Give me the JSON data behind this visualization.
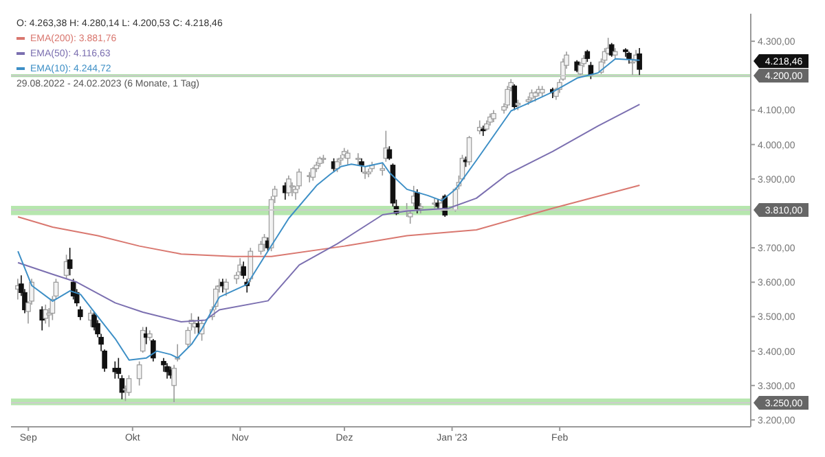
{
  "chart_data": {
    "type": "candlestick",
    "title": "O: 4.263,38  H: 4.280,14  L: 4.200,53  C: 4.218,46",
    "subtitle": "29.08.2022 - 24.02.2023  (6 Monate, 1 Tag)",
    "x": [
      "2022-08-29",
      "2022-08-30",
      "2022-08-31",
      "2022-09-01",
      "2022-09-02",
      "2022-09-05",
      "2022-09-06",
      "2022-09-07",
      "2022-09-08",
      "2022-09-09",
      "2022-09-12",
      "2022-09-13",
      "2022-09-14",
      "2022-09-15",
      "2022-09-16",
      "2022-09-19",
      "2022-09-20",
      "2022-09-21",
      "2022-09-22",
      "2022-09-23",
      "2022-09-26",
      "2022-09-27",
      "2022-09-28",
      "2022-09-29",
      "2022-09-30",
      "2022-10-03",
      "2022-10-04",
      "2022-10-05",
      "2022-10-06",
      "2022-10-07",
      "2022-10-10",
      "2022-10-11",
      "2022-10-12",
      "2022-10-13",
      "2022-10-14",
      "2022-10-17",
      "2022-10-18",
      "2022-10-19",
      "2022-10-20",
      "2022-10-21",
      "2022-10-24",
      "2022-10-25",
      "2022-10-26",
      "2022-10-27",
      "2022-10-28",
      "2022-10-31",
      "2022-11-01",
      "2022-11-02",
      "2022-11-03",
      "2022-11-04",
      "2022-11-07",
      "2022-11-08",
      "2022-11-09",
      "2022-11-10",
      "2022-11-11",
      "2022-11-14",
      "2022-11-15",
      "2022-11-16",
      "2022-11-17",
      "2022-11-18",
      "2022-11-21",
      "2022-11-22",
      "2022-11-23",
      "2022-11-24",
      "2022-11-25",
      "2022-11-28",
      "2022-11-29",
      "2022-11-30",
      "2022-12-01",
      "2022-12-02",
      "2022-12-05",
      "2022-12-06",
      "2022-12-07",
      "2022-12-08",
      "2022-12-09",
      "2022-12-12",
      "2022-12-13",
      "2022-12-14",
      "2022-12-15",
      "2022-12-16",
      "2022-12-19",
      "2022-12-20",
      "2022-12-21",
      "2022-12-22",
      "2022-12-23",
      "2022-12-27",
      "2022-12-28",
      "2022-12-29",
      "2022-12-30",
      "2023-01-02",
      "2023-01-03",
      "2023-01-04",
      "2023-01-05",
      "2023-01-06",
      "2023-01-09",
      "2023-01-10",
      "2023-01-11",
      "2023-01-12",
      "2023-01-13",
      "2023-01-16",
      "2023-01-17",
      "2023-01-18",
      "2023-01-19",
      "2023-01-20",
      "2023-01-23",
      "2023-01-24",
      "2023-01-25",
      "2023-01-26",
      "2023-01-27",
      "2023-01-30",
      "2023-01-31",
      "2023-02-01",
      "2023-02-02",
      "2023-02-03",
      "2023-02-06",
      "2023-02-07",
      "2023-02-08",
      "2023-02-09",
      "2023-02-10",
      "2023-02-13",
      "2023-02-14",
      "2023-02-15",
      "2023-02-16",
      "2023-02-17",
      "2023-02-20",
      "2023-02-21",
      "2023-02-22",
      "2023-02-23",
      "2023-02-24"
    ],
    "ohlc": [
      [
        3580,
        3610,
        3550,
        3590
      ],
      [
        3595,
        3620,
        3560,
        3570
      ],
      [
        3570,
        3580,
        3510,
        3520
      ],
      [
        3515,
        3545,
        3480,
        3540
      ],
      [
        3545,
        3610,
        3535,
        3600
      ],
      [
        3520,
        3530,
        3460,
        3490
      ],
      [
        3495,
        3535,
        3480,
        3520
      ],
      [
        3505,
        3525,
        3470,
        3510
      ],
      [
        3510,
        3560,
        3490,
        3550
      ],
      [
        3560,
        3610,
        3550,
        3600
      ],
      [
        3620,
        3680,
        3610,
        3660
      ],
      [
        3665,
        3700,
        3620,
        3640
      ],
      [
        3600,
        3610,
        3550,
        3560
      ],
      [
        3570,
        3580,
        3530,
        3540
      ],
      [
        3520,
        3530,
        3490,
        3500
      ],
      [
        3490,
        3520,
        3470,
        3510
      ],
      [
        3505,
        3515,
        3460,
        3470
      ],
      [
        3480,
        3490,
        3440,
        3450
      ],
      [
        3440,
        3450,
        3400,
        3420
      ],
      [
        3400,
        3405,
        3340,
        3350
      ],
      [
        3350,
        3370,
        3320,
        3340
      ],
      [
        3350,
        3380,
        3320,
        3335
      ],
      [
        3320,
        3330,
        3260,
        3280
      ],
      [
        3290,
        3300,
        3255,
        3290
      ],
      [
        3280,
        3330,
        3270,
        3320
      ],
      [
        3320,
        3370,
        3300,
        3360
      ],
      [
        3400,
        3470,
        3395,
        3460
      ],
      [
        3450,
        3470,
        3420,
        3440
      ],
      [
        3440,
        3460,
        3430,
        3450
      ],
      [
        3430,
        3435,
        3370,
        3380
      ],
      [
        3370,
        3380,
        3340,
        3360
      ],
      [
        3355,
        3365,
        3320,
        3340
      ],
      [
        3345,
        3355,
        3320,
        3330
      ],
      [
        3300,
        3360,
        3250,
        3350
      ],
      [
        3380,
        3420,
        3370,
        3380
      ],
      [
        3420,
        3470,
        3410,
        3460
      ],
      [
        3480,
        3510,
        3460,
        3490
      ],
      [
        3470,
        3490,
        3450,
        3480
      ],
      [
        3480,
        3500,
        3450,
        3470
      ],
      [
        3450,
        3490,
        3430,
        3480
      ],
      [
        3500,
        3530,
        3490,
        3520
      ],
      [
        3530,
        3590,
        3520,
        3580
      ],
      [
        3590,
        3610,
        3570,
        3590
      ],
      [
        3600,
        3610,
        3570,
        3590
      ],
      [
        3580,
        3610,
        3560,
        3600
      ],
      [
        3610,
        3630,
        3595,
        3620
      ],
      [
        3630,
        3670,
        3620,
        3650
      ],
      [
        3645,
        3660,
        3610,
        3620
      ],
      [
        3600,
        3610,
        3570,
        3590
      ],
      [
        3610,
        3700,
        3600,
        3690
      ],
      [
        3690,
        3720,
        3680,
        3710
      ],
      [
        3710,
        3740,
        3690,
        3730
      ],
      [
        3720,
        3730,
        3690,
        3700
      ],
      [
        3700,
        3850,
        3690,
        3840
      ],
      [
        3850,
        3880,
        3830,
        3870
      ],
      [
        3880,
        3890,
        3840,
        3860
      ],
      [
        3860,
        3910,
        3850,
        3900
      ],
      [
        3880,
        3890,
        3850,
        3880
      ],
      [
        3860,
        3880,
        3840,
        3870
      ],
      [
        3880,
        3930,
        3870,
        3920
      ],
      [
        3910,
        3920,
        3890,
        3910
      ],
      [
        3905,
        3935,
        3895,
        3930
      ],
      [
        3930,
        3950,
        3920,
        3940
      ],
      [
        3945,
        3965,
        3935,
        3960
      ],
      [
        3960,
        3970,
        3945,
        3960
      ],
      [
        3950,
        3960,
        3920,
        3930
      ],
      [
        3930,
        3960,
        3920,
        3950
      ],
      [
        3955,
        3970,
        3940,
        3960
      ],
      [
        3970,
        3990,
        3960,
        3980
      ],
      [
        3960,
        3985,
        3940,
        3975
      ],
      [
        3960,
        3975,
        3940,
        3960
      ],
      [
        3950,
        3960,
        3920,
        3940
      ],
      [
        3920,
        3935,
        3900,
        3920
      ],
      [
        3915,
        3930,
        3905,
        3920
      ],
      [
        3930,
        3950,
        3920,
        3940
      ],
      [
        3925,
        3945,
        3910,
        3930
      ],
      [
        3960,
        4040,
        3950,
        3990
      ],
      [
        3985,
        3995,
        3955,
        3960
      ],
      [
        3940,
        3945,
        3820,
        3830
      ],
      [
        3820,
        3840,
        3795,
        3800
      ],
      [
        3810,
        3830,
        3790,
        3810
      ],
      [
        3790,
        3810,
        3770,
        3800
      ],
      [
        3830,
        3880,
        3820,
        3850
      ],
      [
        3860,
        3870,
        3800,
        3810
      ],
      [
        3815,
        3830,
        3800,
        3820
      ],
      [
        3830,
        3845,
        3815,
        3830
      ],
      [
        3830,
        3840,
        3810,
        3820
      ],
      [
        3810,
        3845,
        3805,
        3830
      ],
      [
        3850,
        3855,
        3790,
        3795
      ],
      [
        3810,
        3875,
        3805,
        3870
      ],
      [
        3880,
        3910,
        3870,
        3890
      ],
      [
        3900,
        3970,
        3895,
        3960
      ],
      [
        3955,
        3965,
        3935,
        3950
      ],
      [
        3950,
        4025,
        3940,
        4020
      ],
      [
        4040,
        4070,
        4030,
        4050
      ],
      [
        4045,
        4055,
        4025,
        4040
      ],
      [
        4045,
        4070,
        4040,
        4060
      ],
      [
        4065,
        4090,
        4055,
        4080
      ],
      [
        4075,
        4100,
        4065,
        4090
      ],
      [
        4100,
        4120,
        4090,
        4110
      ],
      [
        4115,
        4170,
        4105,
        4160
      ],
      [
        4165,
        4190,
        4155,
        4180
      ],
      [
        4170,
        4175,
        4100,
        4110
      ],
      [
        4115,
        4130,
        4100,
        4120
      ],
      [
        4125,
        4140,
        4115,
        4130
      ],
      [
        4135,
        4160,
        4125,
        4150
      ],
      [
        4140,
        4155,
        4125,
        4150
      ],
      [
        4150,
        4170,
        4140,
        4160
      ],
      [
        4150,
        4170,
        4140,
        4160
      ],
      [
        4160,
        4165,
        4135,
        4150
      ],
      [
        4140,
        4165,
        4130,
        4160
      ],
      [
        4160,
        4190,
        4150,
        4180
      ],
      [
        4190,
        4250,
        4185,
        4240
      ],
      [
        4230,
        4270,
        4220,
        4260
      ],
      [
        4240,
        4245,
        4210,
        4215
      ],
      [
        4205,
        4240,
        4200,
        4230
      ],
      [
        4235,
        4260,
        4225,
        4250
      ],
      [
        4270,
        4275,
        4240,
        4250
      ],
      [
        4230,
        4240,
        4190,
        4200
      ],
      [
        4210,
        4250,
        4205,
        4240
      ],
      [
        4245,
        4280,
        4235,
        4270
      ],
      [
        4265,
        4310,
        4260,
        4280
      ],
      [
        4290,
        4295,
        4255,
        4260
      ],
      [
        4260,
        4280,
        4250,
        4270
      ],
      [
        4275,
        4280,
        4255,
        4270
      ],
      [
        4265,
        4270,
        4235,
        4250
      ],
      [
        4240,
        4250,
        4200,
        4240
      ],
      [
        4245,
        4275,
        4240,
        4260
      ],
      [
        4263.38,
        4280.14,
        4200.53,
        4218.46
      ]
    ],
    "series": [
      {
        "type": "line",
        "name": "EMA(200): 3.881,76",
        "color": "#d9776f",
        "x": [
          "2022-08-29",
          "2022-09-08",
          "2022-09-21",
          "2022-10-03",
          "2022-10-15",
          "2022-10-30",
          "2022-11-10",
          "2022-12-01",
          "2022-12-19",
          "2023-01-08",
          "2023-01-30",
          "2023-02-24"
        ],
        "values": [
          3790,
          3760,
          3735,
          3705,
          3682,
          3675,
          3675,
          3705,
          3735,
          3752,
          3815,
          3881.76
        ]
      },
      {
        "type": "line",
        "name": "EMA(50): 4.116,63",
        "color": "#7b6fb0",
        "x": [
          "2022-08-29",
          "2022-09-08",
          "2022-09-15",
          "2022-09-26",
          "2022-10-04",
          "2022-10-15",
          "2022-10-22",
          "2022-10-26",
          "2022-11-09",
          "2022-11-18",
          "2022-11-29",
          "2022-12-12",
          "2022-12-19",
          "2022-12-31",
          "2023-01-08",
          "2023-01-17",
          "2023-01-30",
          "2023-02-12",
          "2023-02-24"
        ],
        "values": [
          3657,
          3623,
          3600,
          3540,
          3513,
          3485,
          3490,
          3520,
          3546,
          3650,
          3712,
          3796,
          3807,
          3815,
          3844,
          3914,
          3980,
          4054,
          4116.63
        ]
      },
      {
        "type": "line",
        "name": "EMA(10): 4.244,72",
        "color": "#3d8fc6",
        "x": [
          "2022-08-29",
          "2022-09-02",
          "2022-09-08",
          "2022-09-13",
          "2022-09-16",
          "2022-09-21",
          "2022-09-26",
          "2022-09-30",
          "2022-10-05",
          "2022-10-08",
          "2022-10-12",
          "2022-10-14",
          "2022-10-18",
          "2022-10-21",
          "2022-10-26",
          "2022-11-03",
          "2022-11-08",
          "2022-11-15",
          "2022-11-23",
          "2022-11-27",
          "2022-11-30",
          "2022-12-03",
          "2022-12-07",
          "2022-12-12",
          "2022-12-14",
          "2022-12-19",
          "2022-12-25",
          "2022-12-29",
          "2023-01-02",
          "2023-01-08",
          "2023-01-18",
          "2023-01-23",
          "2023-01-30",
          "2023-02-06",
          "2023-02-12",
          "2023-02-17",
          "2023-02-24"
        ],
        "values": [
          3690,
          3590,
          3545,
          3575,
          3565,
          3500,
          3436,
          3374,
          3380,
          3400,
          3390,
          3380,
          3420,
          3465,
          3557,
          3594,
          3675,
          3786,
          3881,
          3914,
          3936,
          3943,
          3936,
          3947,
          3918,
          3870,
          3852,
          3837,
          3870,
          3954,
          4098,
          4120,
          4153,
          4193,
          4208,
          4249,
          4244.72
        ]
      }
    ],
    "xlim": [
      "2022-08-27",
      "2023-03-28"
    ],
    "xticks": [
      {
        "value": "2022-09-01",
        "label": "Sep"
      },
      {
        "value": "2022-10-01",
        "label": "Okt"
      },
      {
        "value": "2022-11-01",
        "label": "Nov"
      },
      {
        "value": "2022-12-01",
        "label": "Dez"
      },
      {
        "value": "2023-01-01",
        "label": "Jan '23"
      },
      {
        "value": "2023-02-01",
        "label": "Feb"
      }
    ],
    "ylim": [
      3180,
      4380
    ],
    "yticks": [
      {
        "value": 3200,
        "label": "3.200,00"
      },
      {
        "value": 3300,
        "label": "3.300,00"
      },
      {
        "value": 3400,
        "label": "3.400,00"
      },
      {
        "value": 3500,
        "label": "3.500,00"
      },
      {
        "value": 3600,
        "label": "3.600,00"
      },
      {
        "value": 3700,
        "label": "3.700,00"
      },
      {
        "value": 3900,
        "label": "3.900,00"
      },
      {
        "value": 4000,
        "label": "4.000,00"
      },
      {
        "value": 4100,
        "label": "4.100,00"
      },
      {
        "value": 4300,
        "label": "4.300,00"
      }
    ],
    "ref_lines": [
      {
        "axis": "y",
        "value": 4200,
        "label": "4.200,00",
        "color": "#cccccc"
      },
      {
        "axis": "y",
        "value": 3810,
        "label": "3.810,00",
        "color": "#cccccc"
      },
      {
        "axis": "y",
        "value": 3250,
        "label": "3.250,00",
        "color": "#cccccc"
      }
    ],
    "bands": [
      {
        "axis": "y",
        "from": 4196,
        "to": 4204,
        "color": "#9fdc98"
      },
      {
        "axis": "y",
        "from": 3795,
        "to": 3822,
        "color": "#b6e6ae"
      },
      {
        "axis": "y",
        "from": 3243,
        "to": 3262,
        "color": "#b6e6ae"
      }
    ],
    "annotations": [
      "4.218,46"
    ],
    "legend": "top left"
  }
}
